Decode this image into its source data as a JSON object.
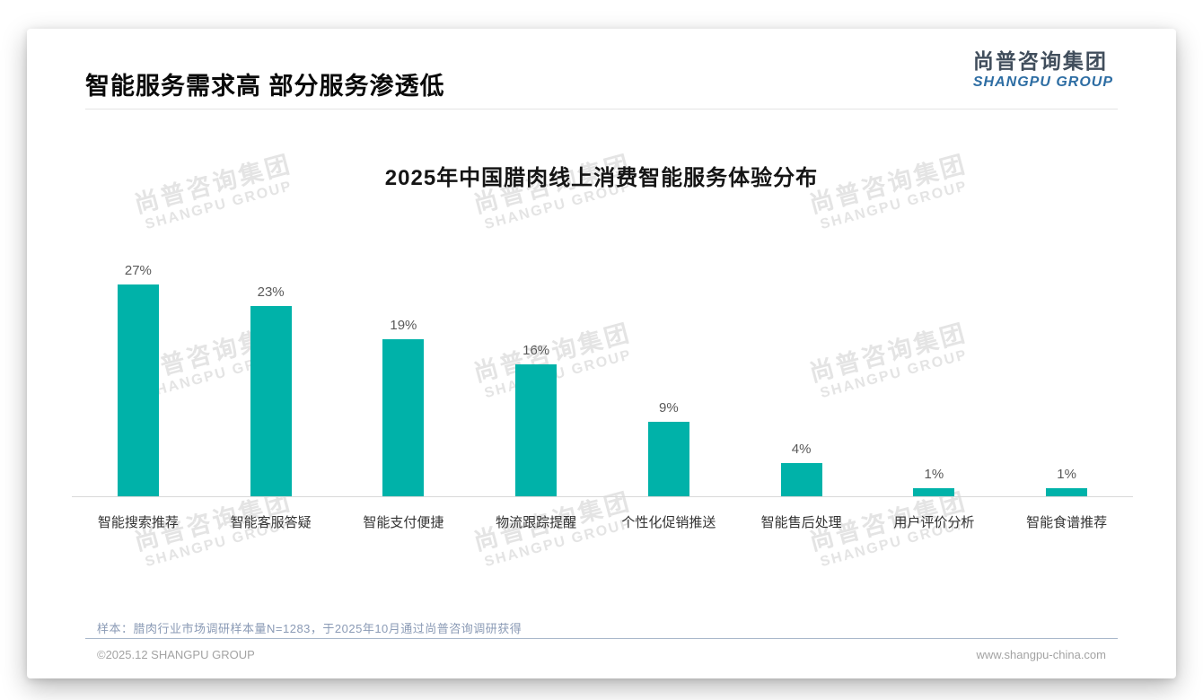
{
  "page": {
    "title": "智能服务需求高 部分服务渗透低",
    "logo": {
      "cn": "尚普咨询集团",
      "en": "SHANGPU GROUP"
    },
    "watermark": {
      "cn": "尚普咨询集团",
      "en": "SHANGPU GROUP"
    },
    "footnote": "样本：腊肉行业市场调研样本量N=1283，于2025年10月通过尚普咨询调研获得",
    "footer": {
      "left": "©2025.12 SHANGPU GROUP",
      "right": "www.shangpu-china.com"
    },
    "colors": {
      "accent_teal": "#00b2a9",
      "logo_blue": "#2d6da3",
      "watermark_gray": "#e4e4e4"
    }
  },
  "chart_data": {
    "type": "bar",
    "title": "2025年中国腊肉线上消费智能服务体验分布",
    "categories": [
      "智能搜索推荐",
      "智能客服答疑",
      "智能支付便捷",
      "物流跟踪提醒",
      "个性化促销推送",
      "智能售后处理",
      "用户评价分析",
      "智能食谱推荐"
    ],
    "values": [
      27,
      23,
      19,
      16,
      9,
      4,
      1,
      1
    ],
    "unit": "%",
    "xlabel": "",
    "ylabel": "",
    "ylim": [
      0,
      28
    ],
    "grid": false,
    "legend": false,
    "data_labels": true,
    "bar_color": "#00b2a9"
  }
}
